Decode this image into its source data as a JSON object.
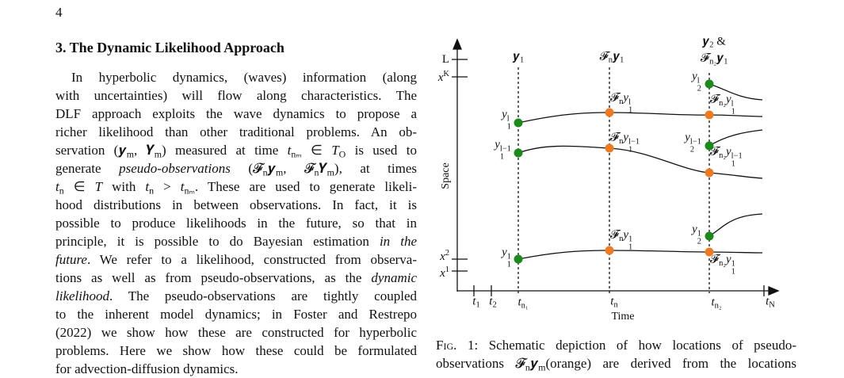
{
  "page_number": "4",
  "section": {
    "heading": "3. The Dynamic Likelihood Approach",
    "lines": [
      [
        "In hyperbolic dynamics, (waves) information (along"
      ],
      [
        "with uncertainties) will flow along characteristics.  The"
      ],
      [
        "DLF approach exploits the wave dynamics to propose a"
      ],
      [
        "richer likelihood than other traditional problems.  An ob-"
      ],
      [
        "servation (𝒚",
        {
          "sub": "m"
        },
        ", 𝒀",
        {
          "sub": "m"
        },
        ") measured at time ",
        {
          "i": "t"
        },
        {
          "sub": "nₘ"
        },
        " ∈ ",
        {
          "i": "T"
        },
        {
          "sub": "O"
        },
        " is used to"
      ],
      [
        "generate ",
        {
          "i": "pseudo-observations"
        },
        " (𝓕",
        {
          "sub": "n"
        },
        "𝒚",
        {
          "sub": "m"
        },
        ", 𝓕",
        {
          "sub": "n"
        },
        "𝒀",
        {
          "sub": "m"
        },
        "), at times"
      ],
      [
        {
          "i": "t"
        },
        {
          "sub": "n"
        },
        " ∈ ",
        {
          "i": "T"
        },
        " with ",
        {
          "i": "t"
        },
        {
          "sub": "n"
        },
        " > ",
        {
          "i": "t"
        },
        {
          "sub": "nₘ"
        },
        ".  These are used to generate likeli-"
      ],
      [
        "hood distributions in between observations.  In fact, it is"
      ],
      [
        "possible to produce likelihoods in the future, so that in"
      ],
      [
        "principle, it is possible to do Bayesian estimation ",
        {
          "i": "in the"
        }
      ],
      [
        {
          "i": "future"
        },
        ".  We refer to a likelihood, constructed from observa-"
      ],
      [
        "tions as well as from pseudo-observations, as the ",
        {
          "i": "dynamic"
        }
      ],
      [
        {
          "i": "likelihood"
        },
        ".  The pseudo-observations are tightly coupled"
      ],
      [
        "to the inherent model dynamics; in Foster and Restrepo"
      ],
      [
        "(2022) we show how these are constructed for hyperbolic"
      ],
      [
        "problems.  Here we show how these could be formulated"
      ],
      [
        "for advection-diffusion dynamics."
      ]
    ]
  },
  "figure": {
    "y_axis_label": "Space",
    "x_axis_label": "Time",
    "y_ticks": [
      [
        "L"
      ],
      [
        {
          "i": "x"
        },
        {
          "sup": "K"
        }
      ],
      [
        {
          "i": "x"
        },
        {
          "sup": "2"
        }
      ],
      [
        {
          "i": "x"
        },
        {
          "sup": "1"
        }
      ]
    ],
    "x_ticks": [
      [
        {
          "i": "t"
        },
        {
          "sub": "1"
        }
      ],
      [
        {
          "i": "t"
        },
        {
          "sub": "2"
        }
      ],
      [
        {
          "i": "t"
        },
        {
          "sub": "n₁"
        }
      ],
      [
        {
          "i": "t"
        },
        {
          "sub": "n"
        }
      ],
      [
        {
          "i": "t"
        },
        {
          "sub": "n₂"
        }
      ],
      [
        {
          "i": "t"
        },
        {
          "sub": "N"
        }
      ]
    ],
    "column_headers": [
      [
        "𝒚",
        {
          "sub": "1"
        }
      ],
      [
        "𝓕",
        {
          "sub": "n"
        },
        "𝒚",
        {
          "sub": "1"
        }
      ],
      [
        "𝒚",
        {
          "sub": "2"
        },
        " &"
      ],
      [
        "𝓕",
        {
          "sub": "n₂"
        },
        "𝒚",
        {
          "sub": "1"
        }
      ]
    ],
    "point_labels": [
      [
        {
          "i": "y"
        },
        {
          "sub": "1",
          "sup": "l"
        }
      ],
      [
        {
          "i": "y"
        },
        {
          "sub": "1",
          "sup": "l−1"
        }
      ],
      [
        {
          "i": "y"
        },
        {
          "sub": "1",
          "sup": "1"
        }
      ],
      [
        "𝓕",
        {
          "sub": "n"
        },
        {
          "i": "y"
        },
        {
          "sub": "1",
          "sup": "l"
        }
      ],
      [
        "𝓕",
        {
          "sub": "n"
        },
        {
          "i": "y"
        },
        {
          "sub": "1",
          "sup": "l−1"
        }
      ],
      [
        "𝓕",
        {
          "sub": "n"
        },
        {
          "i": "y"
        },
        {
          "sub": "1",
          "sup": "1"
        }
      ],
      [
        {
          "i": "y"
        },
        {
          "sub": "2",
          "sup": "l"
        }
      ],
      [
        "𝓕",
        {
          "sub": "n₂"
        },
        {
          "i": "y"
        },
        {
          "sub": "1",
          "sup": "l"
        }
      ],
      [
        {
          "i": "y"
        },
        {
          "sub": "2",
          "sup": "l−1"
        }
      ],
      [
        "𝓕",
        {
          "sub": "n₂"
        },
        {
          "i": "y"
        },
        {
          "sub": "1",
          "sup": "l−1"
        }
      ],
      [
        {
          "i": "y"
        },
        {
          "sub": "2",
          "sup": "1"
        }
      ],
      [
        "𝓕",
        {
          "sub": "n₂"
        },
        {
          "i": "y"
        },
        {
          "sub": "1",
          "sup": "1"
        }
      ]
    ],
    "caption_lines": [
      [
        "Fig.",
        " 1: Schematic depiction of how locations of pseudo-"
      ],
      [
        "observations 𝓕",
        {
          "sub": "n"
        },
        "𝒚",
        {
          "sub": "m"
        },
        "(orange) are derived from the locations"
      ]
    ]
  }
}
